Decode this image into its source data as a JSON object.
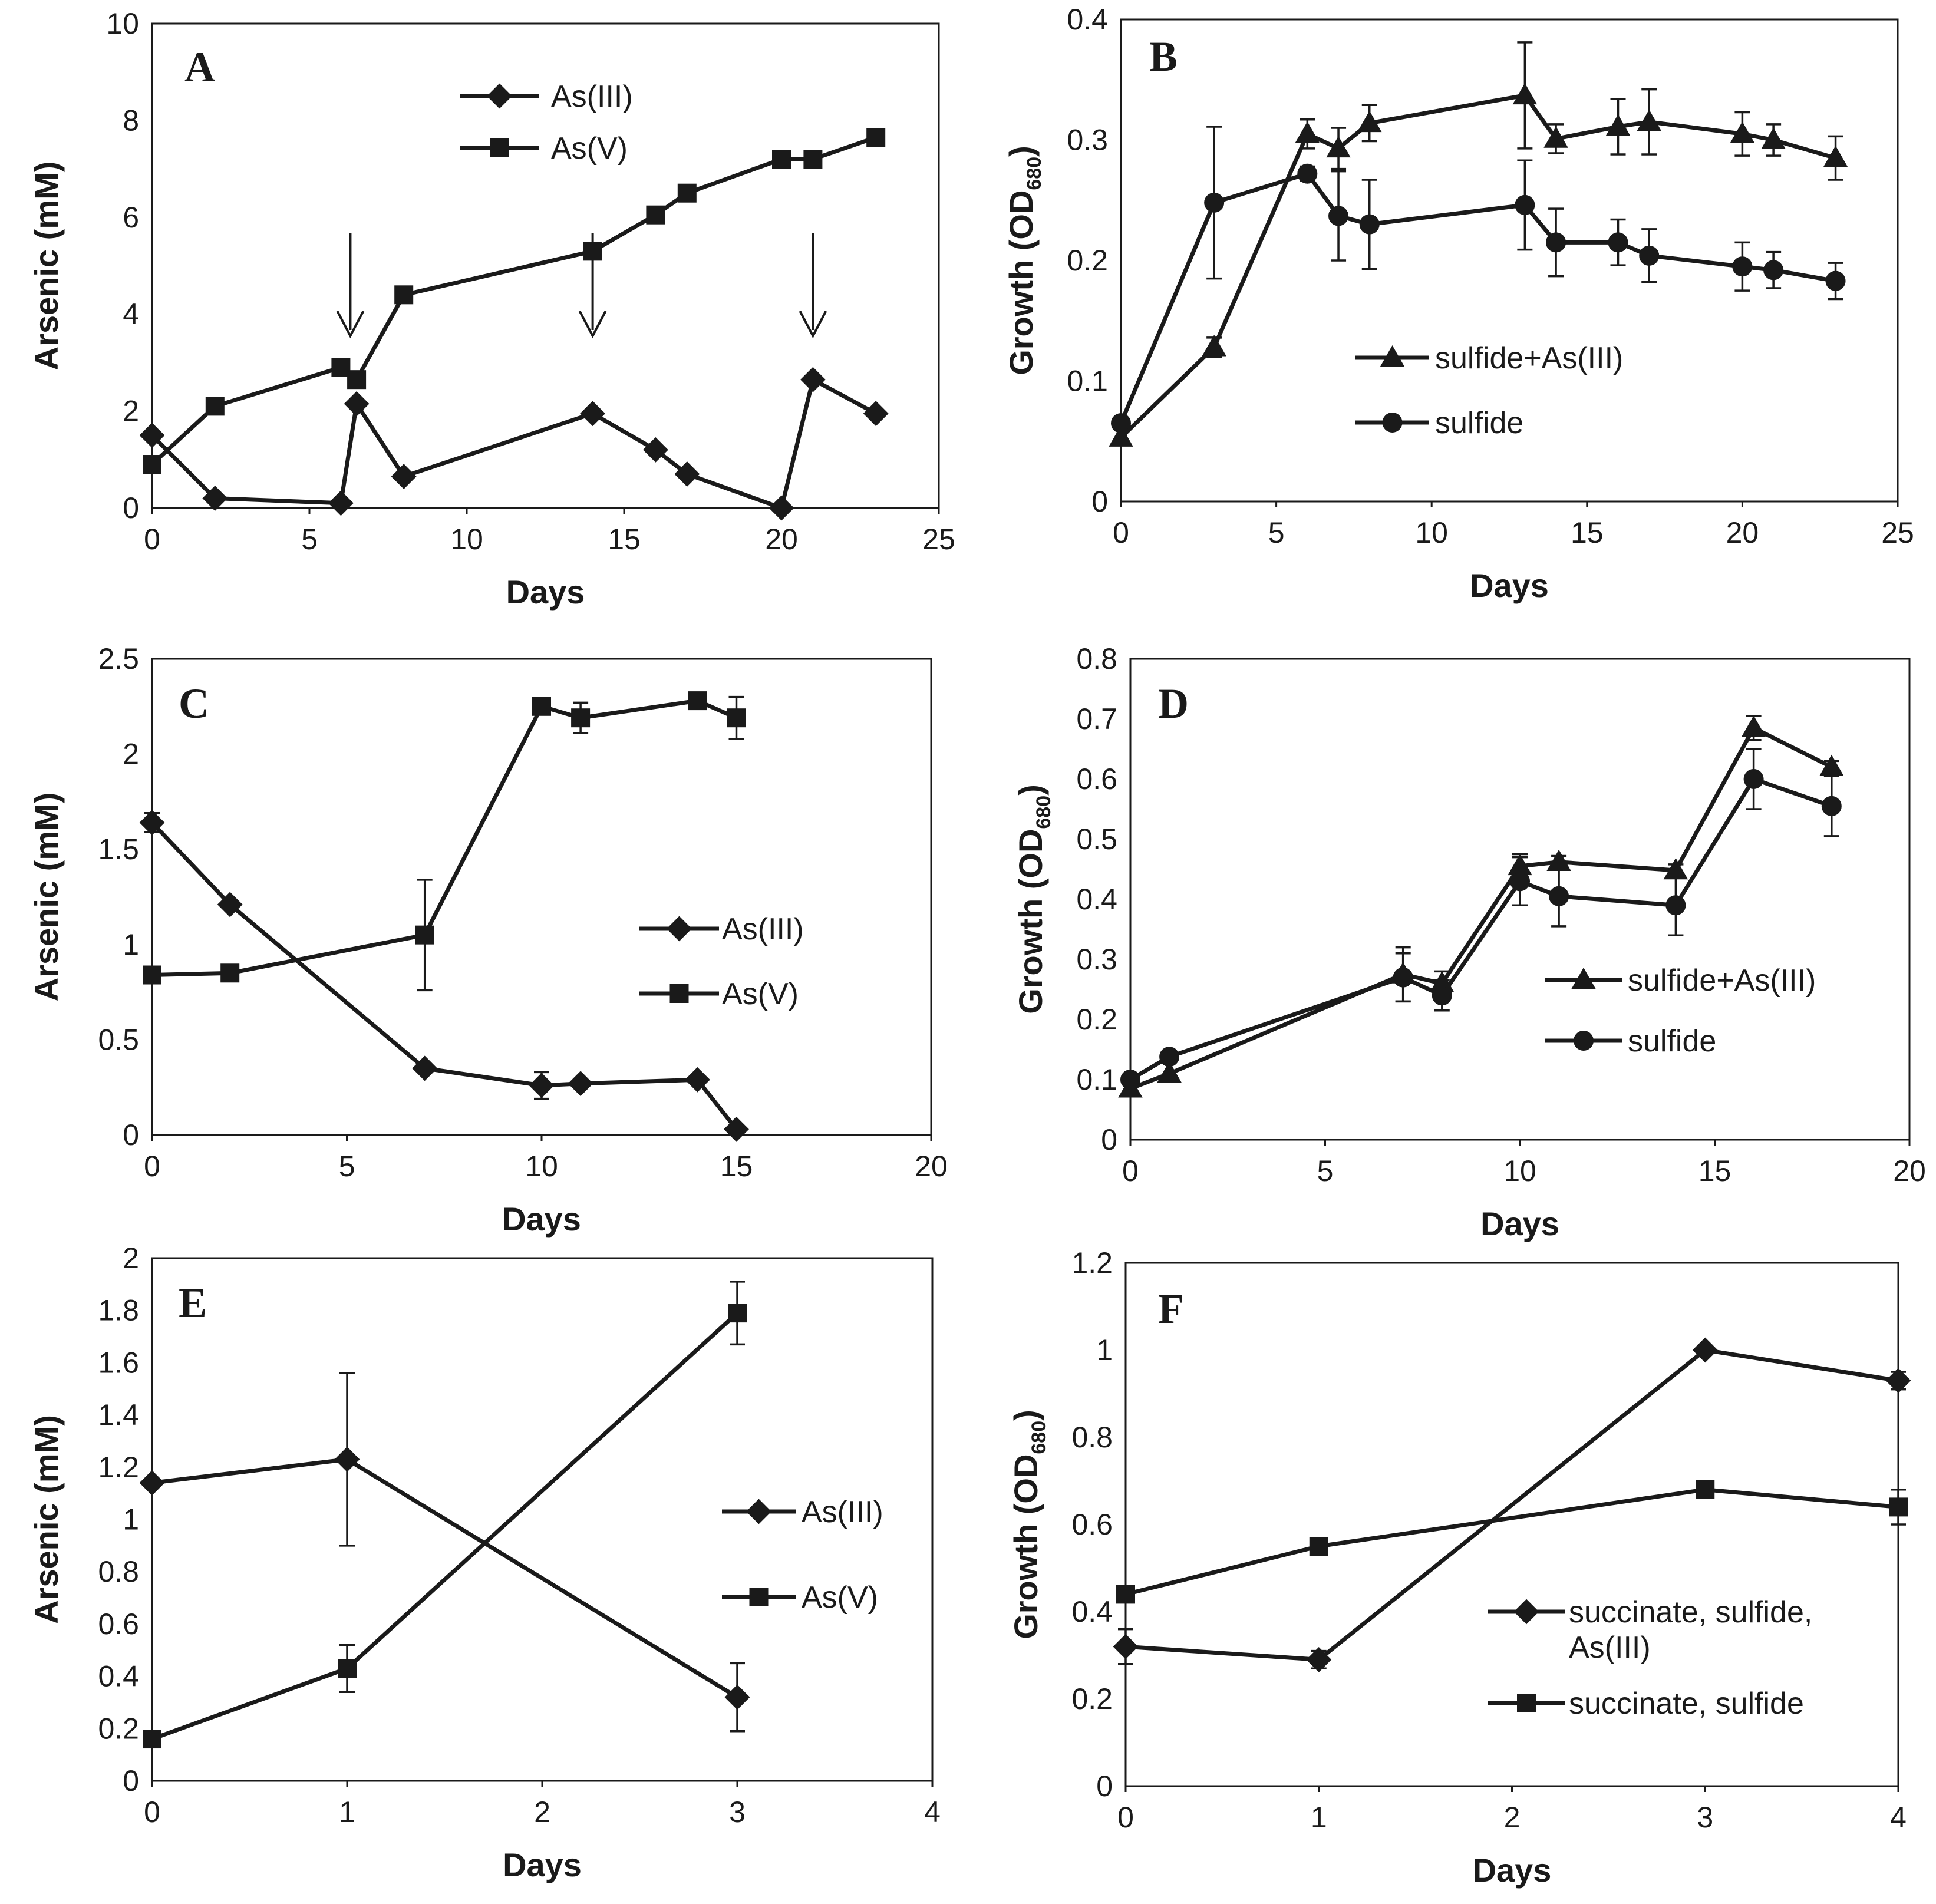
{
  "chart_data": [
    {
      "panel": "A",
      "type": "line",
      "xlabel": "Days",
      "ylabel": "Arsenic (mM)",
      "xlim": [
        0,
        25
      ],
      "ylim": [
        0,
        10
      ],
      "xticks": [
        "0",
        "5",
        "10",
        "15",
        "20",
        "25"
      ],
      "yticks": [
        "0",
        "2",
        "4",
        "6",
        "8",
        "10"
      ],
      "legend_position": "top-center",
      "series": [
        {
          "name": "As(III)",
          "marker": "diamond",
          "x": [
            0,
            2,
            6,
            6.5,
            8,
            14,
            16,
            17,
            20,
            21,
            23
          ],
          "y": [
            1.5,
            0.2,
            0.1,
            2.15,
            0.65,
            1.95,
            1.2,
            0.7,
            0.0,
            2.65,
            1.95
          ]
        },
        {
          "name": "As(V)",
          "marker": "square",
          "x": [
            0,
            2,
            6,
            6.5,
            8,
            14,
            16,
            17,
            20,
            21,
            23
          ],
          "y": [
            0.9,
            2.1,
            2.9,
            2.65,
            4.4,
            5.3,
            6.05,
            6.5,
            7.2,
            7.2,
            7.65
          ]
        }
      ],
      "arrows_at_days": [
        6.3,
        14,
        21
      ]
    },
    {
      "panel": "B",
      "type": "line",
      "xlabel": "Days",
      "ylabel": "Growth (OD",
      "ylabel_subscript": "680",
      "ylabel_close": ")",
      "xlim": [
        0,
        25
      ],
      "ylim": [
        0,
        0.4
      ],
      "xticks": [
        "0",
        "5",
        "10",
        "15",
        "20",
        "25"
      ],
      "yticks": [
        "0",
        "0.1",
        "0.2",
        "0.3",
        "0.4"
      ],
      "legend_position": "bottom-center",
      "series": [
        {
          "name": "sulfide+As(III)",
          "marker": "triangle",
          "x": [
            0,
            3,
            6,
            7,
            8,
            13,
            14,
            16,
            17,
            20,
            21,
            23
          ],
          "y": [
            0.053,
            0.128,
            0.305,
            0.293,
            0.314,
            0.337,
            0.301,
            0.311,
            0.315,
            0.305,
            0.3,
            0.285
          ],
          "err": [
            0,
            0.008,
            0.012,
            0.017,
            0.015,
            0.044,
            0.012,
            0.023,
            0.027,
            0.018,
            0.013,
            0.018
          ]
        },
        {
          "name": "sulfide",
          "marker": "circle",
          "x": [
            0,
            3,
            6,
            7,
            8,
            13,
            14,
            16,
            17,
            20,
            21,
            23
          ],
          "y": [
            0.065,
            0.248,
            0.272,
            0.237,
            0.23,
            0.246,
            0.215,
            0.215,
            0.204,
            0.195,
            0.192,
            0.183
          ],
          "err": [
            0,
            0.063,
            0.006,
            0.037,
            0.037,
            0.037,
            0.028,
            0.019,
            0.022,
            0.02,
            0.015,
            0.015
          ]
        }
      ]
    },
    {
      "panel": "C",
      "type": "line",
      "xlabel": "Days",
      "ylabel": "Arsenic (mM)",
      "xlim": [
        0,
        20
      ],
      "ylim": [
        0,
        2.5
      ],
      "xticks": [
        "0",
        "5",
        "10",
        "15",
        "20"
      ],
      "yticks": [
        "0",
        "0.5",
        "1",
        "1.5",
        "2",
        "2.5"
      ],
      "legend_position": "right-center",
      "series": [
        {
          "name": "As(III)",
          "marker": "diamond",
          "x": [
            0,
            2,
            7,
            10,
            11,
            14,
            15
          ],
          "y": [
            1.64,
            1.21,
            0.35,
            0.26,
            0.27,
            0.29,
            0.03
          ],
          "err": [
            0.05,
            0,
            0,
            0.07,
            0,
            0,
            0
          ]
        },
        {
          "name": "As(V)",
          "marker": "square",
          "x": [
            0,
            2,
            7,
            10,
            11,
            14,
            15
          ],
          "y": [
            0.84,
            0.85,
            1.05,
            2.25,
            2.19,
            2.28,
            2.19
          ],
          "err": [
            0,
            0,
            0.29,
            0.03,
            0.08,
            0,
            0.11
          ]
        }
      ]
    },
    {
      "panel": "D",
      "type": "line",
      "xlabel": "Days",
      "ylabel": "Growth (OD",
      "ylabel_subscript": "680",
      "ylabel_close": ")",
      "xlim": [
        0,
        20
      ],
      "ylim": [
        0,
        0.8
      ],
      "xticks": [
        "0",
        "5",
        "10",
        "15",
        "20"
      ],
      "yticks": [
        "0",
        "0.1",
        "0.2",
        "0.3",
        "0.4",
        "0.5",
        "0.6",
        "0.7",
        "0.8"
      ],
      "legend_position": "right-bottom",
      "series": [
        {
          "name": "sulfide+As(III)",
          "marker": "triangle",
          "x": [
            0,
            1,
            7,
            8,
            10,
            11,
            14,
            16,
            18
          ],
          "y": [
            0.085,
            0.11,
            0.275,
            0.26,
            0.455,
            0.462,
            0.448,
            0.685,
            0.62
          ],
          "err": [
            0,
            0,
            0.045,
            0.02,
            0.02,
            0.01,
            0.01,
            0.02,
            0.01
          ]
        },
        {
          "name": "sulfide",
          "marker": "circle",
          "x": [
            0,
            1,
            7,
            8,
            10,
            11,
            14,
            16,
            18
          ],
          "y": [
            0.1,
            0.138,
            0.27,
            0.24,
            0.43,
            0.405,
            0.39,
            0.6,
            0.555
          ],
          "err": [
            0,
            0,
            0.04,
            0.025,
            0.04,
            0.05,
            0.05,
            0.05,
            0.05
          ]
        }
      ]
    },
    {
      "panel": "E",
      "type": "line",
      "xlabel": "Days",
      "ylabel": "Arsenic (mM)",
      "xlim": [
        0,
        4
      ],
      "ylim": [
        0,
        2
      ],
      "xticks": [
        "0",
        "1",
        "2",
        "3",
        "4"
      ],
      "yticks": [
        "0",
        "0.2",
        "0.4",
        "0.6",
        "0.8",
        "1",
        "1.2",
        "1.4",
        "1.6",
        "1.8",
        "2"
      ],
      "legend_position": "right-center",
      "series": [
        {
          "name": "As(III)",
          "marker": "diamond",
          "x": [
            0,
            1,
            3
          ],
          "y": [
            1.14,
            1.23,
            0.32
          ],
          "err": [
            0,
            0.33,
            0.13
          ]
        },
        {
          "name": "As(V)",
          "marker": "square",
          "x": [
            0,
            1,
            3
          ],
          "y": [
            0.16,
            0.43,
            1.79
          ],
          "err": [
            0,
            0.09,
            0.12
          ]
        }
      ]
    },
    {
      "panel": "F",
      "type": "line",
      "xlabel": "Days",
      "ylabel": "Growth (OD",
      "ylabel_subscript": "680",
      "ylabel_close": ")",
      "xlim": [
        0,
        4
      ],
      "ylim": [
        0,
        1.2
      ],
      "xticks": [
        "0",
        "1",
        "2",
        "3",
        "4"
      ],
      "yticks": [
        "0",
        "0.2",
        "0.4",
        "0.6",
        "0.8",
        "1",
        "1.2"
      ],
      "legend_position": "right-bottom",
      "series": [
        {
          "name": "succinate, sulfide, As(III)",
          "legend_lines": [
            "succinate, sulfide,",
            "As(III)"
          ],
          "marker": "diamond",
          "x": [
            0,
            1,
            3,
            4
          ],
          "y": [
            0.32,
            0.29,
            1.0,
            0.93
          ],
          "err": [
            0.04,
            0.02,
            0.01,
            0.02
          ]
        },
        {
          "name": "succinate, sulfide",
          "legend_lines": [
            "succinate, sulfide"
          ],
          "marker": "square",
          "x": [
            0,
            1,
            3,
            4
          ],
          "y": [
            0.44,
            0.55,
            0.68,
            0.64
          ],
          "err": [
            0,
            0,
            0,
            0.04
          ]
        }
      ]
    }
  ]
}
